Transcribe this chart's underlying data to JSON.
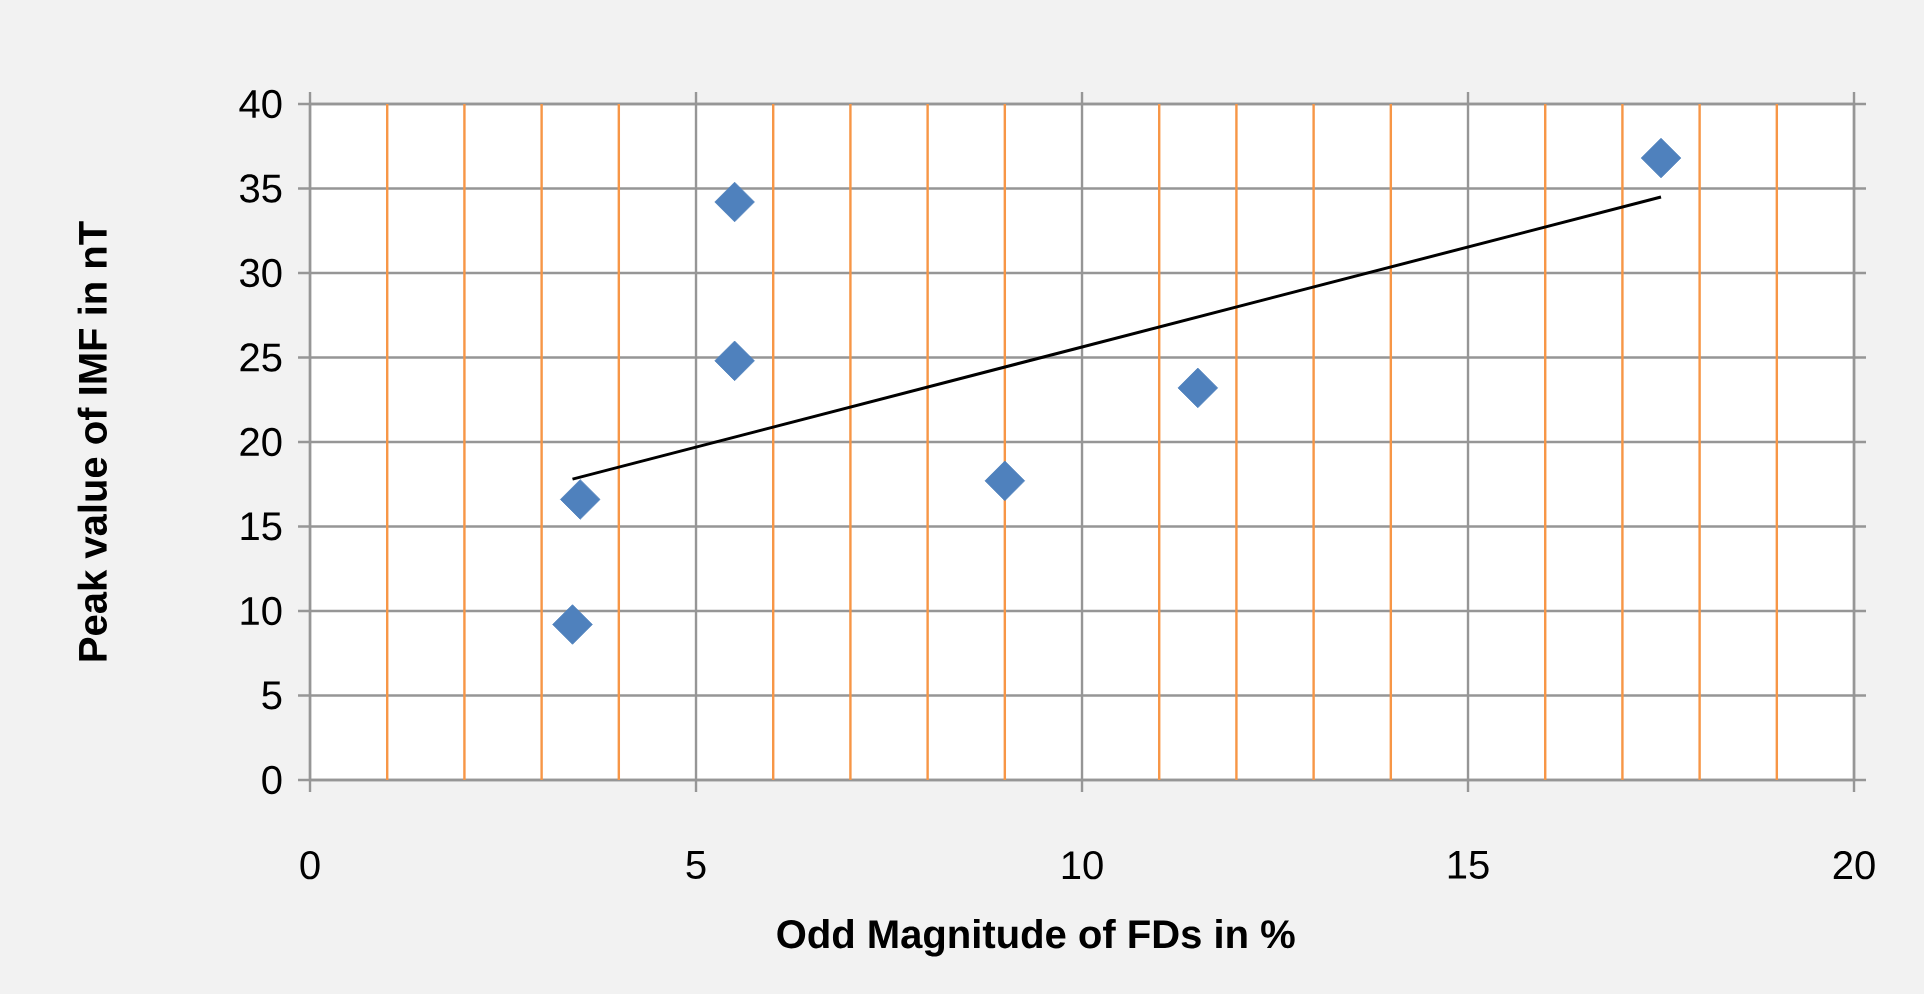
{
  "chart_data": {
    "type": "scatter",
    "xlabel": "Odd Magnitude  of FDs in %",
    "ylabel": "Peak value of IMF in nT",
    "xlim": [
      0,
      20
    ],
    "xticks": [
      0,
      {
        "value": 1,
        "label": null
      },
      {
        "value": 2,
        "label": null
      },
      {
        "value": 3,
        "label": null
      },
      {
        "value": 4,
        "label": null
      },
      5,
      {
        "value": 6,
        "label": null
      },
      {
        "value": 7,
        "label": null
      },
      {
        "value": 8,
        "label": null
      },
      {
        "value": 9,
        "label": null
      },
      10,
      {
        "value": 11,
        "label": null
      },
      {
        "value": 12,
        "label": null
      },
      {
        "value": 13,
        "label": null
      },
      {
        "value": 14,
        "label": null
      },
      15,
      {
        "value": 16,
        "label": null
      },
      {
        "value": 17,
        "label": null
      },
      {
        "value": 18,
        "label": null
      },
      {
        "value": 19,
        "label": null
      },
      20
    ],
    "ylim": [
      0,
      40
    ],
    "yticks": [
      0,
      5,
      10,
      15,
      20,
      25,
      30,
      35,
      40
    ],
    "grid": true,
    "series": [
      {
        "marker": "diamond",
        "color": "#4f81bd",
        "x": [
          3.4,
          3.5,
          5.5,
          5.5,
          9.0,
          11.5,
          17.5
        ],
        "values": [
          9.2,
          16.6,
          34.2,
          24.8,
          17.7,
          23.2,
          36.8
        ]
      },
      {
        "type": "line",
        "marker": "none",
        "line_style": "solid",
        "color": "#000000",
        "x": [
          3.4,
          17.5
        ],
        "values": [
          17.8,
          34.5
        ]
      }
    ]
  }
}
